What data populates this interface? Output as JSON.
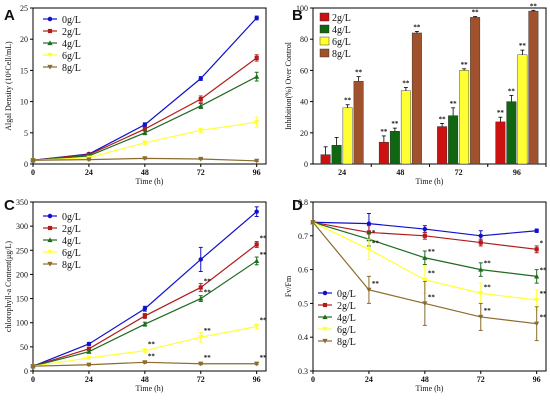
{
  "panels": [
    {
      "letter": "A",
      "chart_data": {
        "type": "line",
        "xlabel": "Time (h)",
        "ylabel": "Algal Density (10⁶Cell/mL)",
        "x": [
          0,
          24,
          48,
          72,
          96
        ],
        "xlim": [
          0,
          100
        ],
        "ylim": [
          0,
          25
        ],
        "yticks": [
          0,
          5,
          10,
          15,
          20,
          25
        ],
        "xticks": [
          0,
          24,
          48,
          72,
          96
        ],
        "legend_position": "top-left",
        "series": [
          {
            "name": "0g/L",
            "color": "#1111cc",
            "marker": "circle",
            "values": [
              0.6,
              1.6,
              6.3,
              13.7,
              23.4
            ],
            "errors": [
              0.1,
              0.2,
              0.3,
              0.3,
              0.3
            ]
          },
          {
            "name": "2g/L",
            "color": "#b31b1b",
            "marker": "square",
            "values": [
              0.6,
              1.5,
              5.6,
              10.4,
              17.0
            ],
            "errors": [
              0.1,
              0.2,
              0.3,
              0.5,
              0.5
            ]
          },
          {
            "name": "4g/L",
            "color": "#1f6b1f",
            "marker": "triangle",
            "values": [
              0.6,
              1.3,
              5.0,
              9.3,
              14.0
            ],
            "errors": [
              0.1,
              0.2,
              0.3,
              0.4,
              0.7
            ]
          },
          {
            "name": "6g/L",
            "color": "#ffff33",
            "marker": "triangle-down",
            "values": [
              0.6,
              1.0,
              3.4,
              5.4,
              6.7
            ],
            "errors": [
              0.1,
              0.1,
              0.3,
              0.3,
              0.8
            ]
          },
          {
            "name": "8g/L",
            "color": "#8b6b2e",
            "marker": "triangle-down",
            "values": [
              0.6,
              0.7,
              0.9,
              0.8,
              0.5
            ],
            "errors": [
              0.1,
              0.1,
              0.1,
              0.1,
              0.1
            ]
          }
        ]
      }
    },
    {
      "letter": "B",
      "chart_data": {
        "type": "bar",
        "xlabel": "Time (h)",
        "ylabel": "Inhibition(%) Over Control",
        "categories": [
          "24",
          "48",
          "72",
          "96"
        ],
        "ylim": [
          0,
          100
        ],
        "yticks": [
          0,
          20,
          40,
          60,
          80,
          100
        ],
        "legend_position": "top-left",
        "series": [
          {
            "name": "2g/L",
            "color": "#cc1111",
            "values": [
              6,
              14,
              24,
              27
            ],
            "errors": [
              5,
              4,
              2,
              3
            ],
            "stars": [
              "",
              "**",
              "**",
              "**"
            ]
          },
          {
            "name": "4g/L",
            "color": "#116611",
            "values": [
              12,
              21,
              31,
              40
            ],
            "errors": [
              5,
              2,
              5,
              4
            ],
            "stars": [
              "",
              "**",
              "**",
              "**"
            ]
          },
          {
            "name": "6g/L",
            "color": "#ffff33",
            "values": [
              36,
              47,
              60,
              70
            ],
            "errors": [
              2,
              2,
              1,
              3
            ],
            "stars": [
              "**",
              "**",
              "**",
              "**"
            ]
          },
          {
            "name": "8g/L",
            "color": "#a0522d",
            "values": [
              53,
              84,
              94,
              98
            ],
            "errors": [
              3,
              1,
              0.5,
              0.5
            ],
            "stars": [
              "**",
              "**",
              "**",
              "**"
            ]
          }
        ]
      }
    },
    {
      "letter": "C",
      "chart_data": {
        "type": "line",
        "xlabel": "Time (h)",
        "ylabel": "chlorophyll-a Content(μg/L)",
        "x": [
          0,
          24,
          48,
          72,
          96
        ],
        "xlim": [
          0,
          100
        ],
        "ylim": [
          0,
          350
        ],
        "yticks": [
          0,
          50,
          100,
          150,
          200,
          250,
          300,
          350
        ],
        "xticks": [
          0,
          24,
          48,
          72,
          96
        ],
        "legend_position": "top-left",
        "series": [
          {
            "name": "0g/L",
            "color": "#1111cc",
            "marker": "circle",
            "values": [
              10,
              56,
              129,
              231,
              330
            ],
            "errors": [
              2,
              3,
              5,
              25,
              10
            ],
            "stars": [
              "",
              "",
              "",
              "",
              ""
            ]
          },
          {
            "name": "2g/L",
            "color": "#b31b1b",
            "marker": "square",
            "values": [
              10,
              46,
              114,
              173,
              262
            ],
            "errors": [
              2,
              3,
              5,
              8,
              6
            ],
            "stars": [
              "",
              "",
              "",
              "**",
              "**"
            ]
          },
          {
            "name": "4g/L",
            "color": "#1f6b1f",
            "marker": "triangle",
            "values": [
              10,
              40,
              97,
              150,
              228
            ],
            "errors": [
              2,
              3,
              4,
              6,
              8
            ],
            "stars": [
              "",
              "",
              "",
              "**",
              "**"
            ]
          },
          {
            "name": "6g/L",
            "color": "#ffff33",
            "marker": "triangle-down",
            "values": [
              10,
              27,
              42,
              70,
              92
            ],
            "errors": [
              2,
              3,
              4,
              10,
              5
            ],
            "stars": [
              "",
              "",
              "**",
              "**",
              "**"
            ]
          },
          {
            "name": "8g/L",
            "color": "#8b6b2e",
            "marker": "triangle-down",
            "values": [
              10,
              13,
              18,
              15,
              15
            ],
            "errors": [
              2,
              2,
              2,
              2,
              2
            ],
            "stars": [
              "",
              "",
              "**",
              "**",
              "**"
            ]
          }
        ]
      }
    },
    {
      "letter": "D",
      "chart_data": {
        "type": "line",
        "xlabel": "Time (h)",
        "ylabel": "Fv/Fm",
        "x": [
          0,
          24,
          48,
          72,
          96
        ],
        "xlim": [
          0,
          100
        ],
        "ylim": [
          0.3,
          0.8
        ],
        "yticks": [
          0.3,
          0.4,
          0.5,
          0.6,
          0.7,
          0.8
        ],
        "xticks": [
          0,
          24,
          48,
          72,
          96
        ],
        "legend_position": "bottom-left",
        "series": [
          {
            "name": "0g/L",
            "color": "#1111cc",
            "marker": "circle",
            "values": [
              0.74,
              0.736,
              0.72,
              0.7,
              0.715
            ],
            "errors": [
              0.005,
              0.03,
              0.01,
              0.015,
              0.005
            ],
            "stars": [
              "",
              "",
              "",
              "",
              ""
            ]
          },
          {
            "name": "2g/L",
            "color": "#b31b1b",
            "marker": "square",
            "values": [
              0.74,
              0.71,
              0.7,
              0.68,
              0.66
            ],
            "errors": [
              0.005,
              0.02,
              0.01,
              0.01,
              0.01
            ],
            "stars": [
              "",
              "",
              "",
              "",
              "*"
            ]
          },
          {
            "name": "4g/L",
            "color": "#1f6b1f",
            "marker": "triangle",
            "values": [
              0.74,
              0.69,
              0.635,
              0.6,
              0.58
            ],
            "errors": [
              0.005,
              0.02,
              0.02,
              0.02,
              0.02
            ],
            "stars": [
              "",
              "*",
              "**",
              "**",
              "**"
            ]
          },
          {
            "name": "6g/L",
            "color": "#ffff33",
            "marker": "triangle-down",
            "values": [
              0.74,
              0.66,
              0.57,
              0.53,
              0.51
            ],
            "errors": [
              0.005,
              0.03,
              0.04,
              0.03,
              0.03
            ],
            "stars": [
              "",
              "**",
              "**",
              "**",
              "**"
            ]
          },
          {
            "name": "8g/L",
            "color": "#8b6b2e",
            "marker": "triangle-down",
            "values": [
              0.74,
              0.54,
              0.5,
              0.46,
              0.44
            ],
            "errors": [
              0.005,
              0.04,
              0.065,
              0.04,
              0.05
            ],
            "stars": [
              "",
              "**",
              "**",
              "**",
              "**"
            ]
          }
        ]
      }
    }
  ]
}
